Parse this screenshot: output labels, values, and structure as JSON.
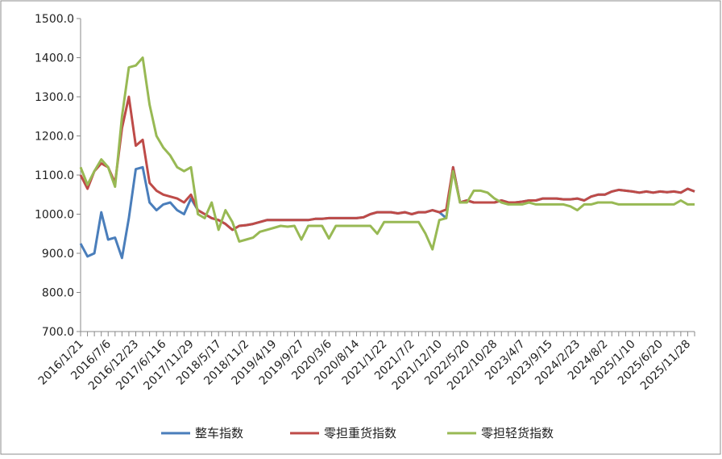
{
  "chart_data": {
    "type": "line",
    "categories": [
      "2016/1/21",
      null,
      null,
      null,
      "2016/7/6",
      null,
      null,
      null,
      "2016/12/23",
      null,
      null,
      null,
      "2017/6/116",
      null,
      null,
      null,
      "2017/11/29",
      null,
      null,
      null,
      "2018/5/17",
      null,
      null,
      null,
      "2018/11/2",
      null,
      null,
      null,
      "2019/4/19",
      null,
      null,
      null,
      "2019/9/27",
      null,
      null,
      null,
      "2020/3/6",
      null,
      null,
      null,
      "2020/8/14",
      null,
      null,
      null,
      "2021/1/22",
      null,
      null,
      null,
      "2021/7/2",
      null,
      null,
      null,
      "2021/12/10",
      null,
      null,
      null,
      "2022/5/20",
      null,
      null,
      null,
      "2022/10/28",
      null,
      null,
      null,
      "2023/4/7",
      null,
      null,
      null,
      "2023/9/15",
      null,
      null,
      null,
      "2024/2/23",
      null,
      null,
      null,
      "2024/8/2",
      null,
      null,
      null,
      "2025/1/10",
      null,
      null,
      null,
      "2025/6/20",
      null,
      null,
      null,
      "2025/11/28",
      null
    ],
    "series": [
      {
        "name": "整车指数",
        "color": "#4a7ebb",
        "values": [
          925,
          892,
          900,
          1005,
          935,
          940,
          888,
          990,
          1115,
          1120,
          1030,
          1010,
          1025,
          1030,
          1010,
          1000,
          1040,
          1010,
          1000,
          990,
          985,
          975,
          960,
          970,
          972,
          975,
          980,
          985,
          985,
          985,
          985,
          985,
          985,
          985,
          988,
          988,
          990,
          990,
          990,
          990,
          990,
          992,
          1000,
          1005,
          1005,
          1005,
          1002,
          1005,
          1000,
          1005,
          1005,
          1010,
          1005,
          990,
          1120,
          1030,
          1035,
          1030,
          1030,
          1030,
          1030,
          1035,
          1030,
          1030,
          1032,
          1035,
          1035,
          1040,
          1040,
          1040,
          1038,
          1038,
          1040,
          1035,
          1045,
          1050,
          1050,
          1058,
          1062,
          1060,
          1058,
          1055,
          1058,
          1055,
          1058,
          1056,
          1058,
          1055,
          1065,
          1058
        ]
      },
      {
        "name": "零担重货指数",
        "color": "#be4b48",
        "values": [
          1100,
          1065,
          1110,
          1130,
          1120,
          1080,
          1220,
          1300,
          1175,
          1190,
          1080,
          1060,
          1050,
          1045,
          1040,
          1030,
          1050,
          1010,
          1000,
          990,
          985,
          975,
          960,
          970,
          972,
          975,
          980,
          985,
          985,
          985,
          985,
          985,
          985,
          985,
          988,
          988,
          990,
          990,
          990,
          990,
          990,
          992,
          1000,
          1005,
          1005,
          1005,
          1002,
          1005,
          1000,
          1005,
          1005,
          1010,
          1005,
          1012,
          1120,
          1030,
          1035,
          1030,
          1030,
          1030,
          1030,
          1035,
          1030,
          1030,
          1032,
          1035,
          1035,
          1040,
          1040,
          1040,
          1038,
          1038,
          1040,
          1035,
          1045,
          1050,
          1050,
          1058,
          1062,
          1060,
          1058,
          1055,
          1058,
          1055,
          1058,
          1056,
          1058,
          1055,
          1065,
          1058
        ]
      },
      {
        "name": "零担轻货指数",
        "color": "#98b954",
        "values": [
          1120,
          1075,
          1110,
          1140,
          1120,
          1070,
          1250,
          1375,
          1380,
          1400,
          1280,
          1200,
          1170,
          1150,
          1120,
          1110,
          1120,
          1000,
          990,
          1030,
          960,
          1010,
          980,
          930,
          935,
          940,
          955,
          960,
          965,
          970,
          968,
          970,
          935,
          970,
          970,
          970,
          938,
          970,
          970,
          970,
          970,
          970,
          970,
          950,
          980,
          980,
          980,
          980,
          980,
          980,
          950,
          910,
          985,
          990,
          1110,
          1030,
          1030,
          1060,
          1060,
          1055,
          1040,
          1030,
          1025,
          1025,
          1025,
          1030,
          1025,
          1025,
          1025,
          1025,
          1025,
          1020,
          1010,
          1025,
          1025,
          1030,
          1030,
          1030,
          1025,
          1025,
          1025,
          1025,
          1025,
          1025,
          1025,
          1025,
          1025,
          1035,
          1025,
          1025
        ]
      }
    ],
    "ylim": [
      700,
      1500
    ],
    "yticks": [
      {
        "value": 700,
        "label": "700.0"
      },
      {
        "value": 800,
        "label": "800.0"
      },
      {
        "value": 900,
        "label": "900.0"
      },
      {
        "value": 1000,
        "label": "1000.0"
      },
      {
        "value": 1100,
        "label": "1100.0"
      },
      {
        "value": 1200,
        "label": "1200.0"
      },
      {
        "value": 1300,
        "label": "1300.0"
      },
      {
        "value": 1400,
        "label": "1400.0"
      },
      {
        "value": 1500,
        "label": "1500.0"
      }
    ],
    "grid": false
  }
}
